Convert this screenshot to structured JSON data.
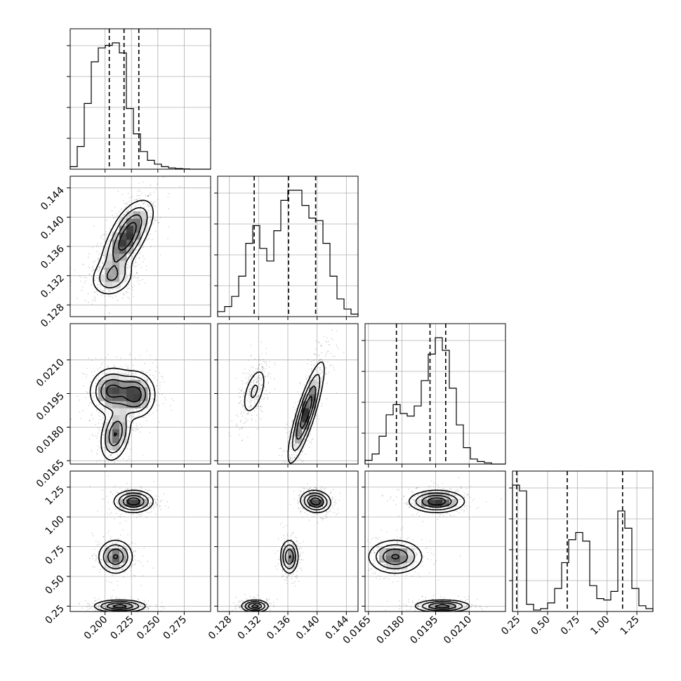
{
  "chart_data": {
    "type": "corner",
    "parameters": [
      {
        "name": "",
        "range": [
          0.167,
          0.3
        ],
        "ticks": [
          0.2,
          0.225,
          0.25,
          0.275
        ],
        "tick_labels": [
          "0.200",
          "0.225",
          "0.250",
          "0.275"
        ],
        "quantiles": [
          0.204,
          0.218,
          0.232
        ]
      },
      {
        "name": "",
        "range": [
          0.1264,
          0.1456
        ],
        "ticks": [
          0.128,
          0.132,
          0.136,
          0.14,
          0.144
        ],
        "tick_labels": [
          "0.128",
          "0.132",
          "0.136",
          "0.140",
          "0.144"
        ],
        "quantiles": [
          0.1314,
          0.1361,
          0.1398
        ]
      },
      {
        "name": "",
        "range": [
          0.01635,
          0.02262
        ],
        "ticks": [
          0.0165,
          0.018,
          0.0195,
          0.021
        ],
        "tick_labels": [
          "0.0165",
          "0.0180",
          "0.0195",
          "0.0210"
        ],
        "quantiles": [
          0.01775,
          0.01925,
          0.01995
        ]
      },
      {
        "name": "",
        "range": [
          0.205,
          1.385
        ],
        "ticks": [
          0.25,
          0.5,
          0.75,
          1.0,
          1.25
        ],
        "tick_labels": [
          "0.25",
          "0.50",
          "0.75",
          "1.00",
          "1.25"
        ],
        "quantiles": [
          0.24,
          0.665,
          1.13
        ]
      }
    ],
    "histograms": [
      {
        "param": 0,
        "values": [
          0.02,
          0.18,
          0.52,
          0.85,
          0.96,
          0.98,
          1.0,
          0.92,
          0.48,
          0.28,
          0.14,
          0.07,
          0.04,
          0.02,
          0.01,
          0.005,
          0.002,
          0,
          0,
          0
        ]
      },
      {
        "param": 1,
        "values": [
          0.04,
          0.08,
          0.16,
          0.32,
          0.58,
          0.72,
          0.54,
          0.44,
          0.68,
          0.92,
          1.0,
          1.0,
          0.88,
          0.78,
          0.76,
          0.58,
          0.32,
          0.14,
          0.06,
          0.02
        ]
      },
      {
        "param": 2,
        "values": [
          0.03,
          0.08,
          0.22,
          0.39,
          0.47,
          0.4,
          0.38,
          0.46,
          0.66,
          0.87,
          1.0,
          0.9,
          0.6,
          0.31,
          0.13,
          0.04,
          0.02,
          0.01,
          0,
          0
        ]
      },
      {
        "param": 3,
        "values": [
          0.88,
          0.84,
          0.05,
          0.01,
          0.02,
          0.06,
          0.16,
          0.34,
          0.5,
          0.55,
          0.49,
          0.18,
          0.09,
          0.08,
          0.14,
          0.7,
          0.58,
          0.16,
          0.04,
          0.02
        ]
      }
    ],
    "pairs": [
      {
        "x": 0,
        "y": 1,
        "modes": [
          {
            "mx": 0.219,
            "my": 0.1367,
            "sx": 0.011,
            "sy": 0.0022,
            "rho": 0.62,
            "w": 0.46
          },
          {
            "mx": 0.228,
            "my": 0.1396,
            "sx": 0.01,
            "sy": 0.0016,
            "rho": 0.45,
            "w": 0.2
          },
          {
            "mx": 0.207,
            "my": 0.1318,
            "sx": 0.01,
            "sy": 0.0013,
            "rho": 0.2,
            "w": 0.34
          }
        ]
      },
      {
        "x": 0,
        "y": 2,
        "modes": [
          {
            "mx": 0.206,
            "my": 0.01962,
            "sx": 0.01,
            "sy": 0.0005,
            "rho": 0.05,
            "w": 0.34
          },
          {
            "mx": 0.229,
            "my": 0.01945,
            "sx": 0.009,
            "sy": 0.0005,
            "rho": 0.0,
            "w": 0.36
          },
          {
            "mx": 0.21,
            "my": 0.0177,
            "sx": 0.007,
            "sy": 0.0006,
            "rho": 0.3,
            "w": 0.3
          }
        ]
      },
      {
        "x": 0,
        "y": 3,
        "modes": [
          {
            "mx": 0.227,
            "my": 1.13,
            "sx": 0.009,
            "sy": 0.045,
            "rho": 0.0,
            "w": 0.36
          },
          {
            "mx": 0.21,
            "my": 0.665,
            "sx": 0.008,
            "sy": 0.07,
            "rho": 0.0,
            "w": 0.3
          },
          {
            "mx": 0.214,
            "my": 0.25,
            "sx": 0.012,
            "sy": 0.025,
            "rho": 0.0,
            "w": 0.34
          }
        ]
      },
      {
        "x": 1,
        "y": 2,
        "modes": [
          {
            "mx": 0.1314,
            "my": 0.0196,
            "sx": 0.0009,
            "sy": 0.0006,
            "rho": 0.55,
            "w": 0.35
          },
          {
            "mx": 0.1385,
            "my": 0.01865,
            "sx": 0.0012,
            "sy": 0.0011,
            "rho": 0.85,
            "w": 0.65
          }
        ]
      },
      {
        "x": 1,
        "y": 3,
        "modes": [
          {
            "mx": 0.1398,
            "my": 1.13,
            "sx": 0.001,
            "sy": 0.045,
            "rho": -0.1,
            "w": 0.36
          },
          {
            "mx": 0.1362,
            "my": 0.665,
            "sx": 0.0006,
            "sy": 0.07,
            "rho": 0.0,
            "w": 0.3
          },
          {
            "mx": 0.1315,
            "my": 0.25,
            "sx": 0.0009,
            "sy": 0.025,
            "rho": 0.0,
            "w": 0.34
          }
        ]
      },
      {
        "x": 2,
        "y": 3,
        "modes": [
          {
            "mx": 0.01955,
            "my": 1.13,
            "sx": 0.0006,
            "sy": 0.045,
            "rho": 0.0,
            "w": 0.36
          },
          {
            "mx": 0.0177,
            "my": 0.665,
            "sx": 0.0006,
            "sy": 0.07,
            "rho": 0.0,
            "w": 0.3
          },
          {
            "mx": 0.0198,
            "my": 0.25,
            "sx": 0.0006,
            "sy": 0.025,
            "rho": 0.0,
            "w": 0.34
          }
        ]
      }
    ],
    "grid": true,
    "legend": "none"
  }
}
